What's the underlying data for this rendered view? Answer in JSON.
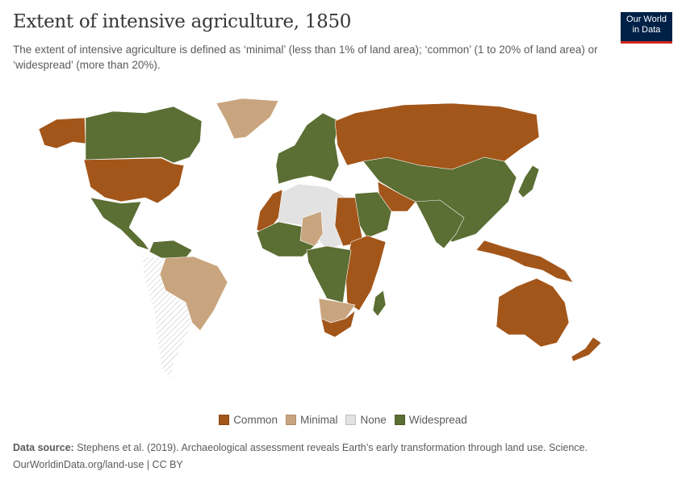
{
  "header": {
    "title": "Extent of intensive agriculture, 1850",
    "subtitle": "The extent of intensive agriculture is defined as ‘minimal’ (less than 1% of land area); ‘common’ (1 to 20% of land area) or ‘widespread’ (more than 20%).",
    "logo": "Our World in Data"
  },
  "colors": {
    "Common": "#a3561a",
    "Minimal": "#c9a57f",
    "None": "#e2e2e2",
    "Widespread": "#5b6e33",
    "NoData": "hatched"
  },
  "legend": [
    {
      "label": "Common",
      "color": "#a3561a"
    },
    {
      "label": "Minimal",
      "color": "#c9a57f"
    },
    {
      "label": "None",
      "color": "#e2e2e2"
    },
    {
      "label": "Widespread",
      "color": "#5b6e33"
    }
  ],
  "map": {
    "year": "1850",
    "regions": [
      {
        "name": "Alaska",
        "category": "Common"
      },
      {
        "name": "Canada",
        "category": "Widespread"
      },
      {
        "name": "United States",
        "category": "Common"
      },
      {
        "name": "Mexico & Central America",
        "category": "Widespread"
      },
      {
        "name": "Greenland",
        "category": "Minimal"
      },
      {
        "name": "Northern South America",
        "category": "Widespread"
      },
      {
        "name": "Brazil",
        "category": "Minimal"
      },
      {
        "name": "Western South America",
        "category": "NoData"
      },
      {
        "name": "Europe",
        "category": "Widespread"
      },
      {
        "name": "Russia",
        "category": "Common"
      },
      {
        "name": "Central & East Asia",
        "category": "Widespread"
      },
      {
        "name": "India",
        "category": "Widespread"
      },
      {
        "name": "Iran & Afghanistan",
        "category": "Common"
      },
      {
        "name": "Arabia",
        "category": "Widespread"
      },
      {
        "name": "Sahara",
        "category": "None"
      },
      {
        "name": "Morocco",
        "category": "Common"
      },
      {
        "name": "Egypt & Sudan",
        "category": "Common"
      },
      {
        "name": "West Africa",
        "category": "Widespread"
      },
      {
        "name": "Sahel",
        "category": "Minimal"
      },
      {
        "name": "East Africa",
        "category": "Common"
      },
      {
        "name": "Central Africa",
        "category": "Widespread"
      },
      {
        "name": "Southern Africa",
        "category": "Minimal"
      },
      {
        "name": "South Africa",
        "category": "Common"
      },
      {
        "name": "Madagascar",
        "category": "Widespread"
      },
      {
        "name": "Southeast Asia islands",
        "category": "Common"
      },
      {
        "name": "Japan",
        "category": "Widespread"
      },
      {
        "name": "Australia",
        "category": "Common"
      },
      {
        "name": "New Zealand",
        "category": "Common"
      }
    ]
  },
  "footer": {
    "source_label": "Data source:",
    "source_text": " Stephens et al. (2019). Archaeological assessment reveals Earth’s early transformation through land use. Science.",
    "url": "OurWorldinData.org/land-use | CC BY"
  }
}
